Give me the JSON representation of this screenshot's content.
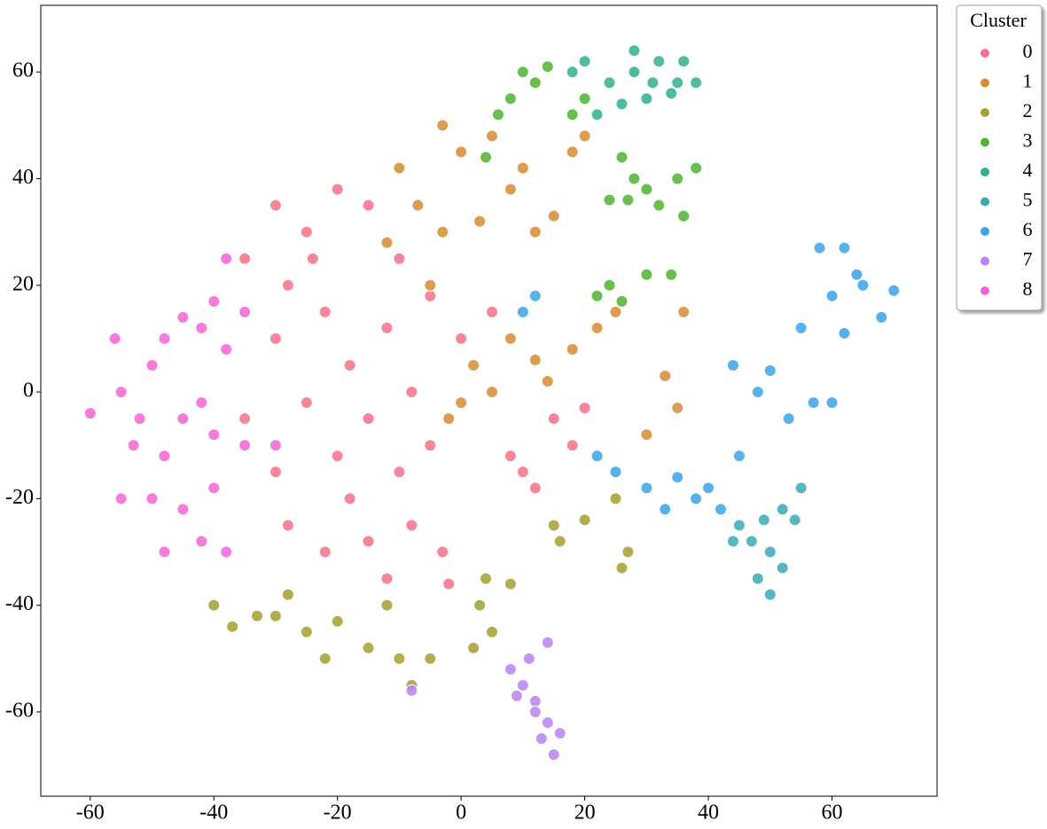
{
  "chart_data": {
    "type": "scatter",
    "legend_title": "Cluster",
    "legend_position": "outside upper right",
    "xlim": [
      -68,
      77
    ],
    "ylim": [
      -75.8,
      72.5
    ],
    "xticks": [
      -60,
      -40,
      -20,
      0,
      20,
      40,
      60
    ],
    "yticks": [
      -60,
      -40,
      -20,
      0,
      20,
      40,
      60
    ],
    "grid": false,
    "series": [
      {
        "name": "0",
        "color": "#f77189",
        "x": [
          -30,
          -25,
          -20,
          -35,
          -28,
          -15,
          -10,
          -22,
          -30,
          -18,
          -12,
          -5,
          0,
          -25,
          -15,
          -8,
          -30,
          -20,
          -10,
          -28,
          -22,
          -15,
          -8,
          -3,
          -18,
          -5,
          5,
          10,
          12,
          8,
          15,
          20,
          18,
          -35,
          -24,
          -12,
          -2
        ],
        "y": [
          35,
          30,
          38,
          25,
          20,
          35,
          25,
          15,
          10,
          5,
          12,
          18,
          10,
          -2,
          -5,
          0,
          -15,
          -12,
          -15,
          -25,
          -30,
          -28,
          -25,
          -30,
          -20,
          -10,
          15,
          -15,
          -18,
          -12,
          -5,
          -3,
          -10,
          -5,
          25,
          -35,
          -36
        ]
      },
      {
        "name": "1",
        "color": "#d58c32",
        "x": [
          -3,
          0,
          5,
          -10,
          -7,
          -3,
          3,
          8,
          12,
          15,
          18,
          20,
          10,
          -5,
          2,
          5,
          8,
          12,
          18,
          22,
          25,
          0,
          -2,
          36,
          33,
          35,
          -12,
          30,
          14
        ],
        "y": [
          50,
          45,
          48,
          42,
          35,
          30,
          32,
          38,
          30,
          33,
          45,
          48,
          42,
          20,
          5,
          0,
          10,
          6,
          8,
          12,
          15,
          -2,
          -5,
          15,
          3,
          -3,
          28,
          -8,
          2
        ]
      },
      {
        "name": "2",
        "color": "#a4a031",
        "x": [
          -40,
          -37,
          -30,
          -25,
          -20,
          -15,
          -10,
          -5,
          -12,
          -28,
          -22,
          3,
          5,
          2,
          4,
          15,
          16,
          20,
          25,
          27,
          26,
          -8,
          -33,
          8
        ],
        "y": [
          -40,
          -44,
          -42,
          -45,
          -43,
          -48,
          -50,
          -50,
          -40,
          -38,
          -50,
          -40,
          -45,
          -48,
          -35,
          -25,
          -28,
          -24,
          -20,
          -30,
          -33,
          -55,
          -42,
          -36
        ]
      },
      {
        "name": "3",
        "color": "#50b131",
        "x": [
          10,
          12,
          8,
          14,
          6,
          20,
          18,
          26,
          28,
          30,
          35,
          32,
          27,
          36,
          24,
          24,
          22,
          26,
          30,
          34,
          4,
          38
        ],
        "y": [
          60,
          58,
          55,
          61,
          52,
          55,
          52,
          44,
          40,
          38,
          40,
          35,
          36,
          33,
          36,
          20,
          18,
          17,
          22,
          22,
          44,
          42
        ]
      },
      {
        "name": "4",
        "color": "#34ae91",
        "x": [
          20,
          24,
          28,
          32,
          35,
          30,
          26,
          22,
          36,
          38,
          28,
          34,
          18,
          31
        ],
        "y": [
          62,
          58,
          60,
          62,
          58,
          55,
          54,
          52,
          62,
          58,
          64,
          56,
          60,
          58
        ]
      },
      {
        "name": "5",
        "color": "#37abb5",
        "x": [
          45,
          47,
          50,
          48,
          50,
          52,
          55,
          44,
          52,
          49,
          54
        ],
        "y": [
          -25,
          -28,
          -30,
          -35,
          -38,
          -22,
          -18,
          -28,
          -33,
          -24,
          -24
        ]
      },
      {
        "name": "6",
        "color": "#3ba3ec",
        "x": [
          55,
          60,
          65,
          62,
          70,
          68,
          58,
          62,
          50,
          53,
          60,
          45,
          40,
          42,
          38,
          35,
          30,
          25,
          22,
          44,
          48,
          10,
          12,
          64,
          57,
          33
        ],
        "y": [
          12,
          18,
          20,
          27,
          19,
          14,
          27,
          11,
          4,
          -5,
          -2,
          -12,
          -18,
          -22,
          -20,
          -16,
          -18,
          -15,
          -12,
          5,
          0,
          15,
          18,
          22,
          -2,
          -22
        ]
      },
      {
        "name": "7",
        "color": "#bb83f4",
        "x": [
          10,
          12,
          14,
          13,
          15,
          8,
          11,
          14,
          12,
          9,
          16,
          -8
        ],
        "y": [
          -55,
          -58,
          -62,
          -65,
          -68,
          -52,
          -50,
          -47,
          -60,
          -57,
          -64,
          -56
        ]
      },
      {
        "name": "8",
        "color": "#f564d4",
        "x": [
          -60,
          -55,
          -50,
          -48,
          -45,
          -42,
          -40,
          -53,
          -48,
          -45,
          -42,
          -38,
          -35,
          -50,
          -45,
          -40,
          -42,
          -38,
          -48,
          -55,
          -52,
          -40,
          -35,
          -38,
          -56,
          -30
        ],
        "y": [
          -4,
          0,
          5,
          10,
          14,
          12,
          17,
          -10,
          -12,
          -5,
          -2,
          8,
          15,
          -20,
          -22,
          -18,
          -28,
          -30,
          -30,
          -20,
          -5,
          -8,
          -10,
          25,
          10,
          -10
        ]
      }
    ]
  }
}
